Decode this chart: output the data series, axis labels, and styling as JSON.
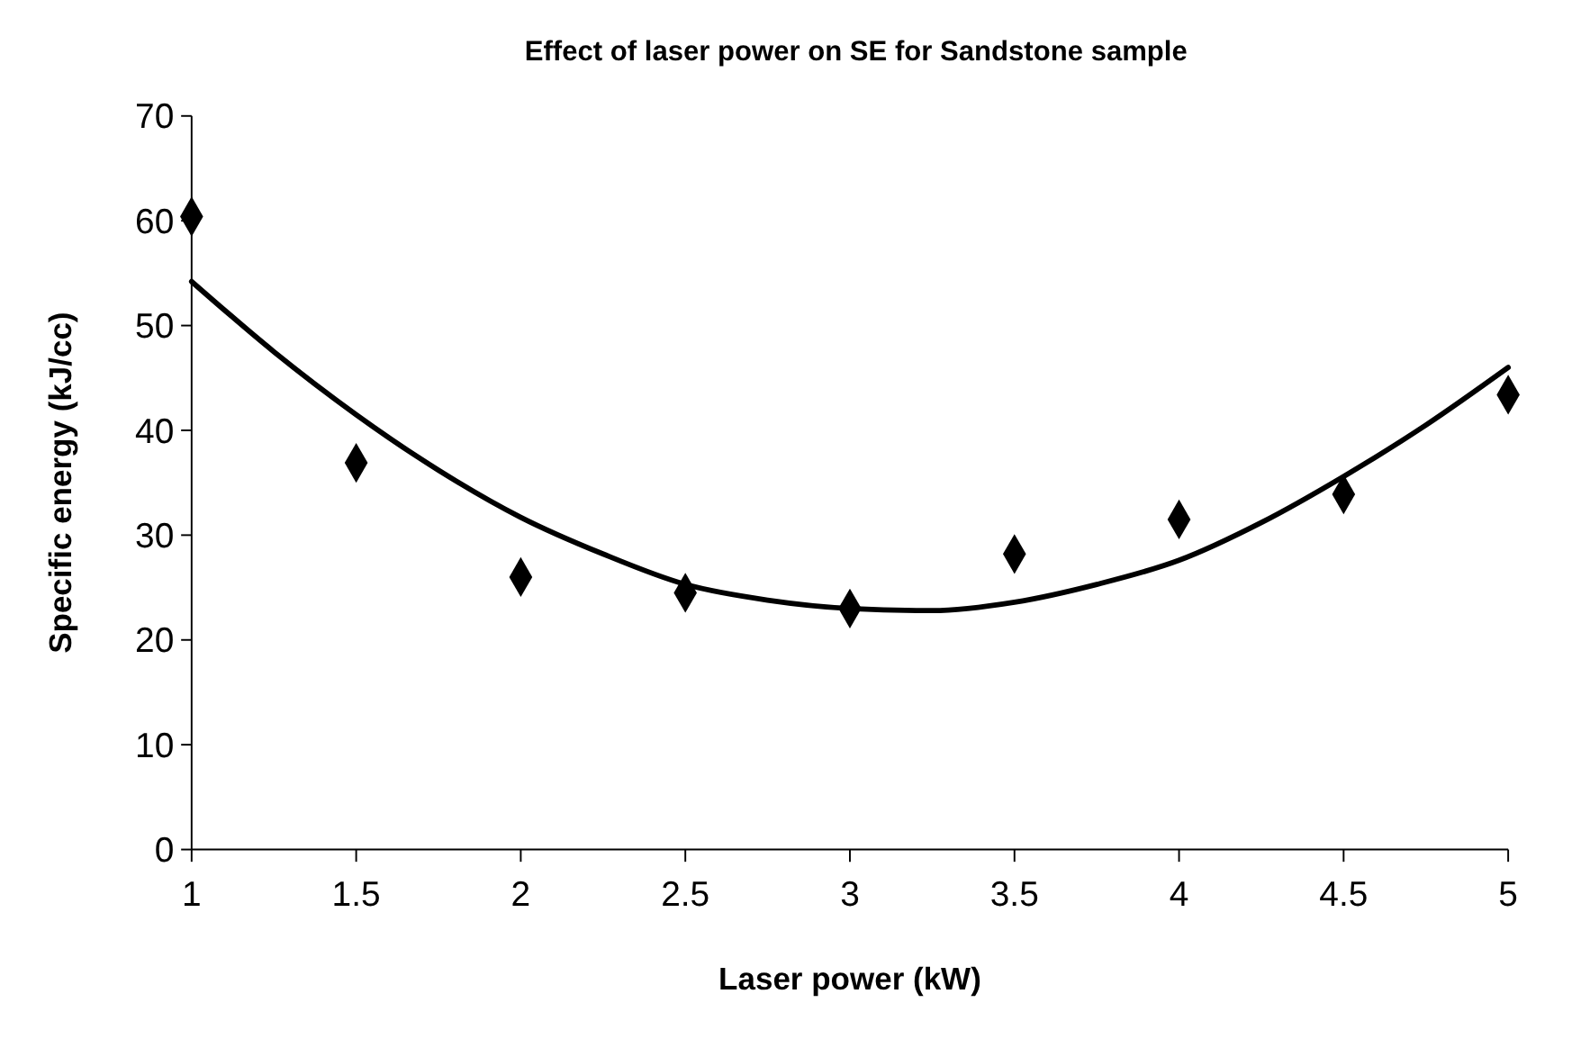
{
  "chart_data": {
    "type": "scatter",
    "title": "Effect of laser power on SE for Sandstone sample",
    "xlabel": "Laser power (kW)",
    "ylabel": "Specific energy (kJ/cc)",
    "xlim": [
      1,
      5
    ],
    "xticks": [
      1,
      1.5,
      2,
      2.5,
      3,
      3.5,
      4,
      4.5,
      5
    ],
    "ylim": [
      0,
      70
    ],
    "yticks": [
      0,
      10,
      20,
      30,
      40,
      50,
      60,
      70
    ],
    "grid": false,
    "marker": "diamond",
    "series": [
      {
        "color": "#000000",
        "x": [
          1,
          1.5,
          2,
          2.5,
          3,
          3.5,
          4,
          4.5,
          5
        ],
        "values": [
          60.4,
          36.9,
          26.0,
          24.5,
          23.0,
          28.2,
          31.5,
          33.9,
          43.4
        ]
      },
      {
        "type": "line",
        "color": "#000000",
        "marker": "none",
        "line_style": "solid",
        "x": [
          1,
          1.25,
          1.5,
          1.75,
          2,
          2.25,
          2.5,
          2.75,
          3,
          3.25,
          3.5,
          3.75,
          4,
          4.25,
          4.5,
          4.75,
          5
        ],
        "values": [
          54.2,
          47.5,
          41.5,
          36.2,
          31.7,
          28.2,
          25.3,
          23.8,
          23.0,
          22.8,
          23.6,
          25.3,
          27.6,
          31.2,
          35.6,
          40.5,
          46.0
        ]
      }
    ]
  }
}
